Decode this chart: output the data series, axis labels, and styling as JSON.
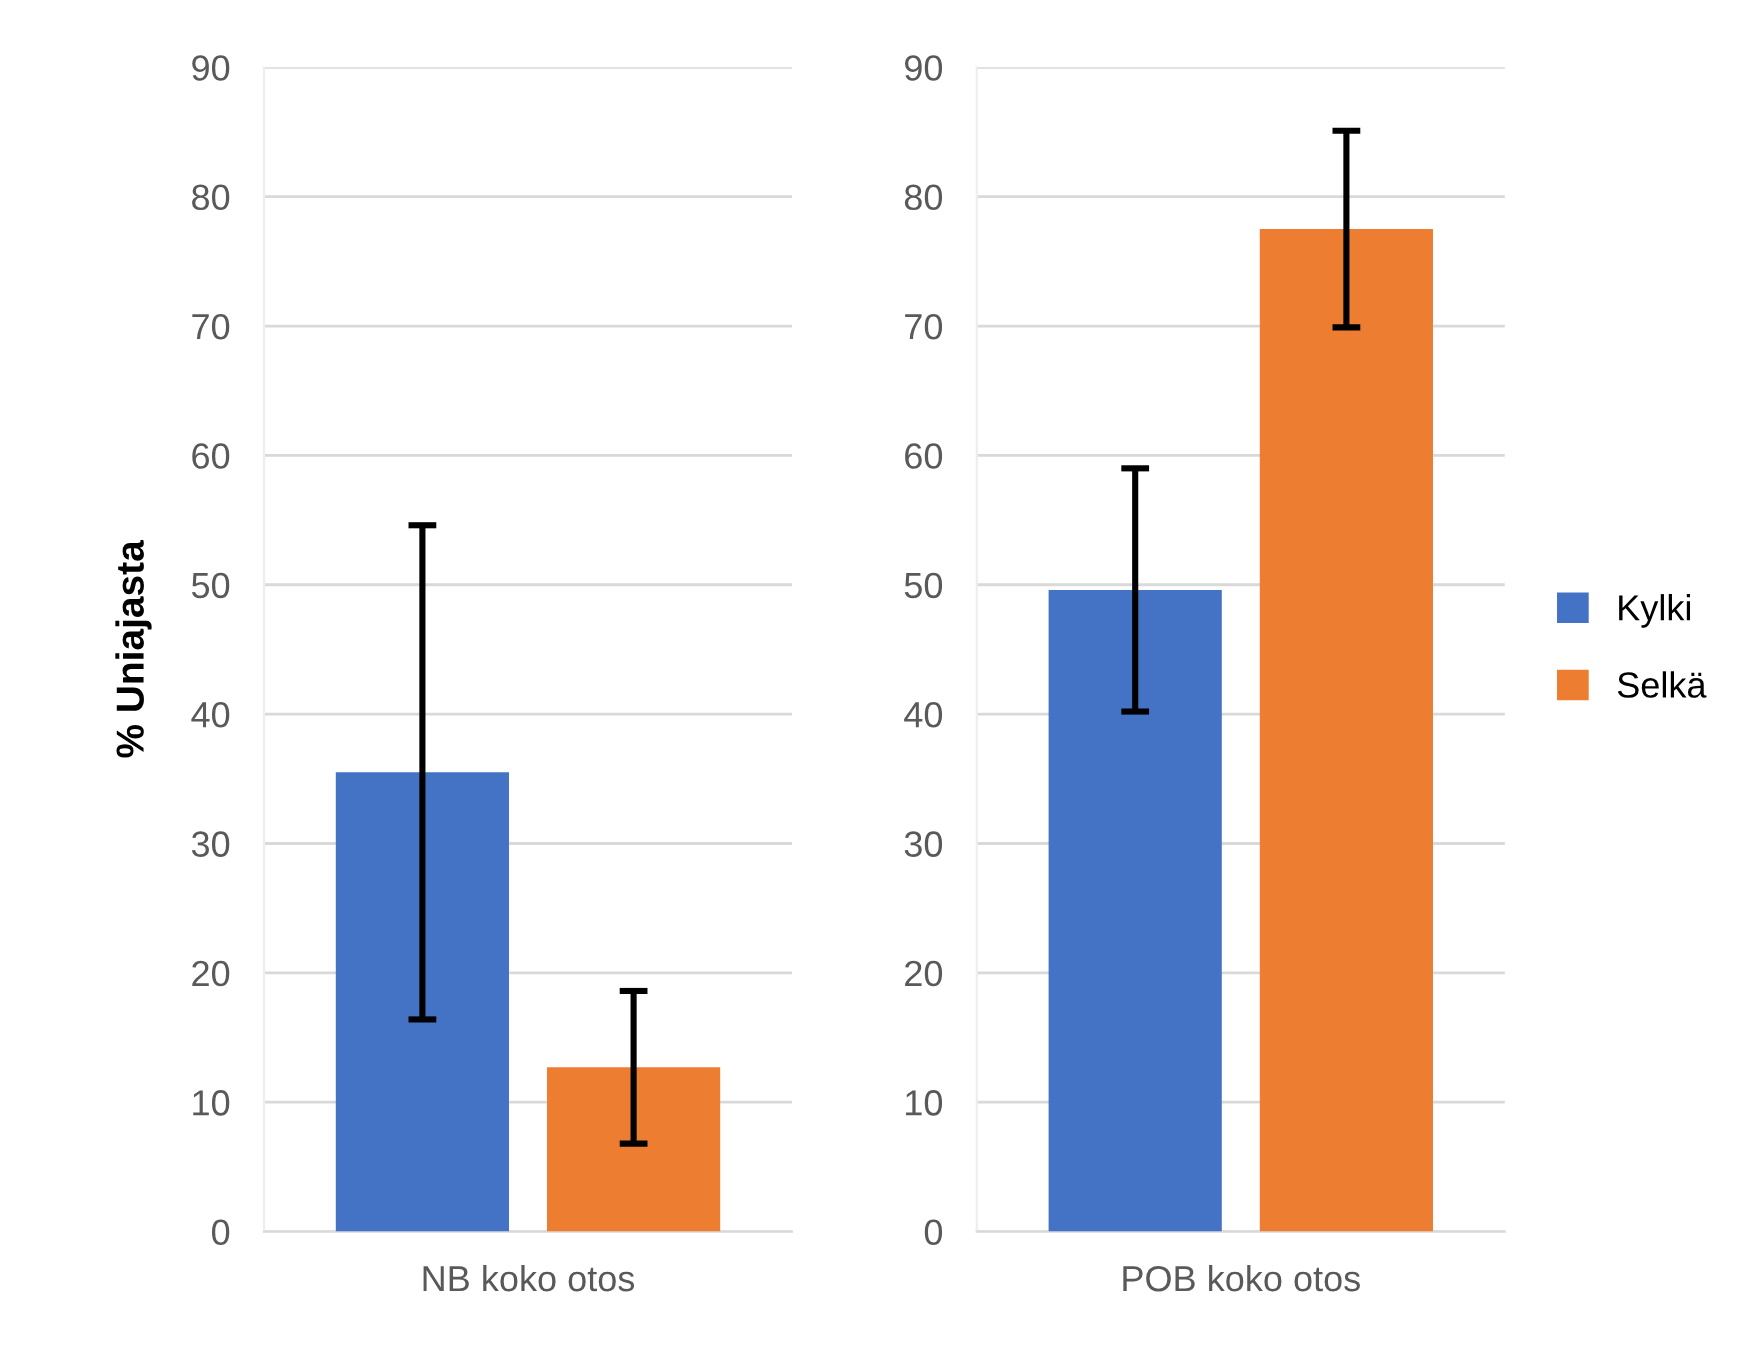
{
  "chart_data": [
    {
      "type": "bar",
      "ylabel": "% Uniajasta",
      "categories": [
        "NB koko otos"
      ],
      "ylim": [
        0,
        90
      ],
      "yticks": [
        0,
        10,
        20,
        30,
        40,
        50,
        60,
        70,
        80,
        90
      ],
      "grid": "y",
      "series": [
        {
          "color": "#4472c4",
          "values": [
            35.5
          ],
          "errors": [
            19.1
          ]
        },
        {
          "color": "#ed7d31",
          "values": [
            12.7
          ],
          "errors": [
            5.9
          ]
        }
      ]
    },
    {
      "type": "bar",
      "categories": [
        "POB koko otos"
      ],
      "ylim": [
        0,
        90
      ],
      "yticks": [
        0,
        10,
        20,
        30,
        40,
        50,
        60,
        70,
        80,
        90
      ],
      "grid": "y",
      "legend": "right",
      "series": [
        {
          "name": "Kylki",
          "color": "#4472c4",
          "values": [
            49.6
          ],
          "errors": [
            9.4
          ]
        },
        {
          "name": "Selkä",
          "color": "#ed7d31",
          "values": [
            77.5
          ],
          "errors": [
            7.6
          ]
        }
      ]
    }
  ]
}
